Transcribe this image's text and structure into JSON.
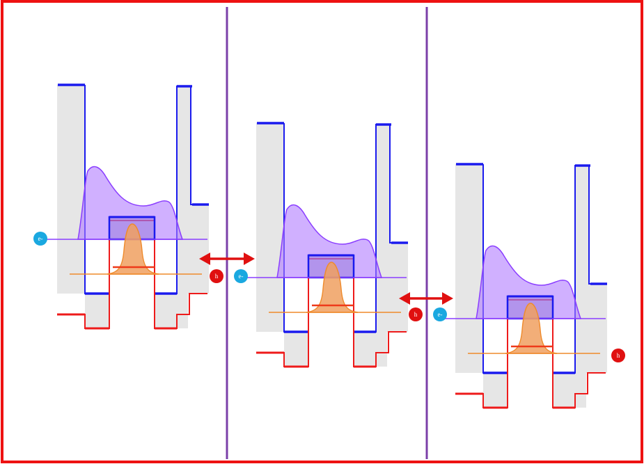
{
  "carriers": {
    "electron_label": "e-",
    "hole_label": "h"
  },
  "colors": {
    "frame": "#ee1111",
    "conduction_band": "#1a1aee",
    "valence_band": "#ee1a1a",
    "electron_wavefunction": "#b07cff",
    "hole_wavefunction": "#f0a060",
    "divider": "#7b3fa8",
    "transfer_arrow": "#e01010",
    "electron_marker": "#1aa8e0",
    "hole_marker": "#e01010"
  },
  "panels": 3,
  "transfer_arrows": 2
}
